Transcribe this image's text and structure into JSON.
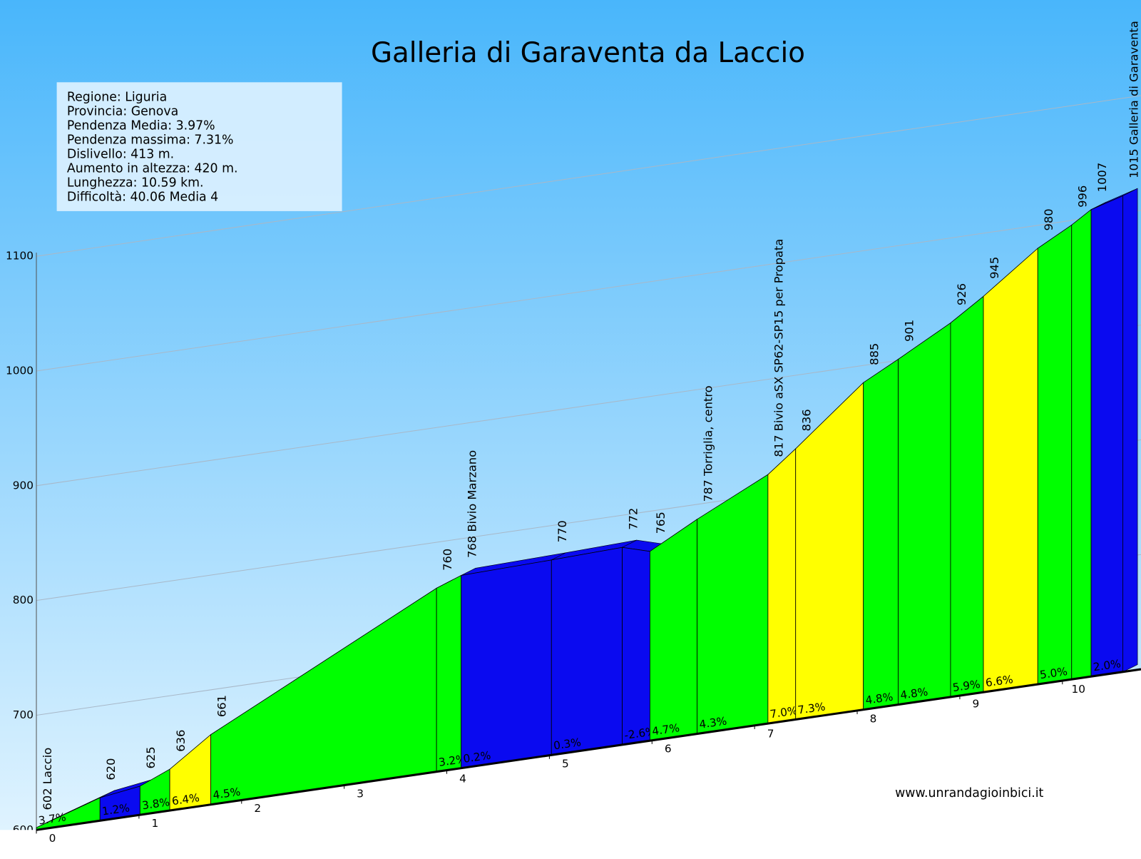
{
  "chart_data": {
    "type": "profile",
    "title": "Galleria di Garaventa da Laccio",
    "info": [
      "Regione: Liguria",
      "Provincia: Genova",
      "Pendenza Media: 3.97%",
      "Pendenza massima: 7.31%",
      "Dislivello:   413 m.",
      "Aumento in altezza:   420 m.",
      "Lunghezza:  10.59 km.",
      "Difficoltà: 40.06 Media 4"
    ],
    "footer": "www.unrandagioinbici.it",
    "xlim": [
      0,
      10.59
    ],
    "xticks": [
      0,
      1,
      2,
      3,
      4,
      5,
      6,
      7,
      8,
      9,
      10
    ],
    "ylim": [
      600,
      1100
    ],
    "yticks": [
      600,
      700,
      800,
      900,
      1000,
      1100
    ],
    "grid": true,
    "points": {
      "x": [
        0,
        0.62,
        1.01,
        1.3,
        1.7,
        3.9,
        4.14,
        5.02,
        5.71,
        5.98,
        6.44,
        7.13,
        7.4,
        8.06,
        8.4,
        8.91,
        9.23,
        9.76,
        10.09,
        10.28,
        10.59
      ],
      "values": [
        602,
        620,
        625,
        636,
        661,
        760,
        768,
        770,
        772,
        765,
        787,
        817,
        836,
        885,
        901,
        926,
        945,
        980,
        996,
        1007,
        1015
      ],
      "value_labels": [
        "602 Laccio",
        "620",
        "625",
        "636",
        "661",
        "760",
        "768 Bivio Marzano",
        "770",
        "772",
        "765",
        "787 Torriglia, centro",
        "817 Bivio  aSX SP62-SP15 per Propata",
        "836",
        "885",
        "901",
        "926",
        "945",
        "980",
        "996",
        "1007",
        "1015 Galleria di Garaventa"
      ]
    },
    "segments": {
      "values": [
        3.7,
        1.2,
        3.8,
        6.4,
        4.5,
        3.2,
        0.2,
        0.3,
        -2.6,
        4.7,
        4.3,
        7.0,
        7.3,
        4.8,
        4.8,
        5.9,
        6.6,
        5.0,
        null,
        2.0
      ],
      "value_labels": [
        "3.7%",
        "1.2%",
        "3.8%",
        "6.4%",
        "4.5%",
        "3.2%",
        "0.2%",
        "0.3%",
        "-2.6%",
        "4.7%",
        "4.3%",
        "7.0%",
        "7.3%",
        "4.8%",
        "4.8%",
        "5.9%",
        "6.6%",
        "5.0%",
        null,
        "2.0%"
      ],
      "colors": [
        "#00ff00",
        "#0a0af0",
        "#00ff00",
        "#ffff00",
        "#00ff00",
        "#00ff00",
        "#0a0af0",
        "#0a0af0",
        "#0a0af0",
        "#00ff00",
        "#00ff00",
        "#ffff00",
        "#ffff00",
        "#00ff00",
        "#00ff00",
        "#00ff00",
        "#ffff00",
        "#00ff00",
        "#00ff00",
        "#0a0af0"
      ]
    }
  }
}
